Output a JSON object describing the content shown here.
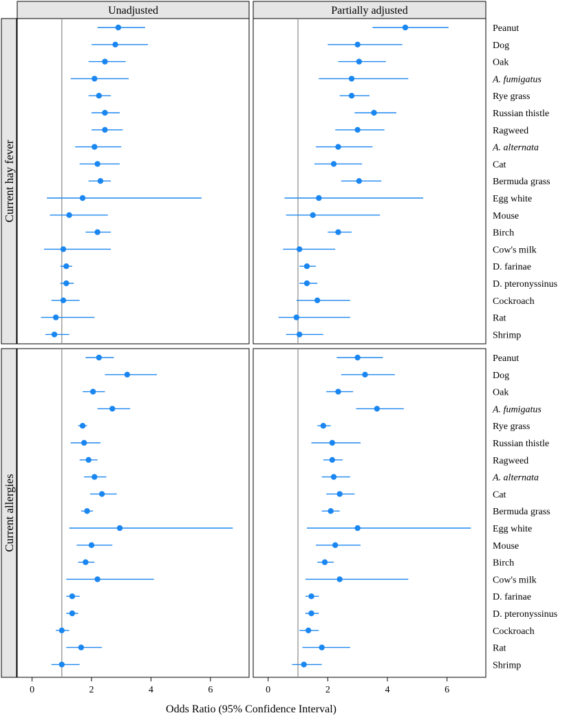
{
  "chart_data": {
    "type": "forest",
    "xlabel": "Odds Ratio (95% Confidence Interval)",
    "xlim": [
      -0.5,
      7.3
    ],
    "xticks": [
      0,
      2,
      4,
      6
    ],
    "reference_line": 1,
    "colors": {
      "points": "#1a86f0",
      "reference": "#888888",
      "strip": "#e6e6e6",
      "frame": "#000000"
    },
    "columns": [
      "Unadjusted",
      "Partially adjusted"
    ],
    "rows": [
      "Current hay fever",
      "Current allergies"
    ],
    "categories": [
      {
        "name": "Peanut",
        "italic": false
      },
      {
        "name": "Dog",
        "italic": false
      },
      {
        "name": "Oak",
        "italic": false
      },
      {
        "name": "A. fumigatus",
        "italic": true
      },
      {
        "name": "Rye grass",
        "italic": false
      },
      {
        "name": "Russian thistle",
        "italic": false
      },
      {
        "name": "Ragweed",
        "italic": false
      },
      {
        "name": "A. alternata",
        "italic": true
      },
      {
        "name": "Cat",
        "italic": false
      },
      {
        "name": "Bermuda grass",
        "italic": false
      },
      {
        "name": "Egg white",
        "italic": false
      },
      {
        "name": "Mouse",
        "italic": false
      },
      {
        "name": "Birch",
        "italic": false
      },
      {
        "name": "Cow's milk",
        "italic": false
      },
      {
        "name": "D. farinae",
        "italic": false
      },
      {
        "name": "D. pteronyssinus",
        "italic": false
      },
      {
        "name": "Cockroach",
        "italic": false
      },
      {
        "name": "Rat",
        "italic": false
      },
      {
        "name": "Shrimp",
        "italic": false
      }
    ],
    "panels": [
      {
        "row": "Current hay fever",
        "column": "Unadjusted",
        "estimates": [
          [
            2.9,
            2.2,
            3.8
          ],
          [
            2.8,
            2.0,
            3.9
          ],
          [
            2.45,
            1.9,
            3.15
          ],
          [
            2.1,
            1.3,
            3.25
          ],
          [
            2.25,
            1.9,
            2.65
          ],
          [
            2.45,
            2.0,
            2.95
          ],
          [
            2.45,
            2.0,
            3.05
          ],
          [
            2.1,
            1.45,
            3.0
          ],
          [
            2.2,
            1.6,
            2.95
          ],
          [
            2.3,
            1.9,
            2.65
          ],
          [
            1.7,
            0.5,
            5.7
          ],
          [
            1.25,
            0.6,
            2.55
          ],
          [
            2.2,
            1.8,
            2.65
          ],
          [
            1.05,
            0.4,
            2.65
          ],
          [
            1.15,
            0.95,
            1.35
          ],
          [
            1.15,
            0.95,
            1.4
          ],
          [
            1.05,
            0.65,
            1.6
          ],
          [
            0.8,
            0.3,
            2.1
          ],
          [
            0.75,
            0.45,
            1.25
          ]
        ]
      },
      {
        "row": "Current hay fever",
        "column": "Partially adjusted",
        "estimates": [
          [
            4.6,
            3.5,
            6.05
          ],
          [
            3.0,
            2.0,
            4.5
          ],
          [
            3.05,
            2.35,
            3.95
          ],
          [
            2.8,
            1.7,
            4.7
          ],
          [
            2.8,
            2.4,
            3.4
          ],
          [
            3.55,
            2.9,
            4.3
          ],
          [
            3.0,
            2.25,
            3.9
          ],
          [
            2.35,
            1.6,
            3.5
          ],
          [
            2.2,
            1.55,
            3.15
          ],
          [
            3.05,
            2.45,
            3.8
          ],
          [
            1.7,
            0.55,
            5.2
          ],
          [
            1.5,
            0.6,
            3.75
          ],
          [
            2.35,
            2.0,
            2.8
          ],
          [
            1.05,
            0.5,
            2.25
          ],
          [
            1.3,
            1.05,
            1.6
          ],
          [
            1.3,
            1.05,
            1.65
          ],
          [
            1.65,
            0.95,
            2.75
          ],
          [
            0.95,
            0.35,
            2.75
          ],
          [
            1.05,
            0.6,
            1.85
          ]
        ]
      },
      {
        "row": "Current allergies",
        "column": "Unadjusted",
        "estimates": [
          [
            2.25,
            1.8,
            2.75
          ],
          [
            3.2,
            2.45,
            4.2
          ],
          [
            2.05,
            1.7,
            2.45
          ],
          [
            2.7,
            2.2,
            3.3
          ],
          [
            1.7,
            1.55,
            1.85
          ],
          [
            1.75,
            1.3,
            2.3
          ],
          [
            1.9,
            1.6,
            2.2
          ],
          [
            2.1,
            1.75,
            2.5
          ],
          [
            2.35,
            1.95,
            2.85
          ],
          [
            1.85,
            1.65,
            2.05
          ],
          [
            2.95,
            1.25,
            6.75
          ],
          [
            2.0,
            1.5,
            2.7
          ],
          [
            1.8,
            1.55,
            2.1
          ],
          [
            2.2,
            1.15,
            4.1
          ],
          [
            1.35,
            1.15,
            1.6
          ],
          [
            1.35,
            1.15,
            1.55
          ],
          [
            1.0,
            0.8,
            1.25
          ],
          [
            1.65,
            1.15,
            2.35
          ],
          [
            1.0,
            0.65,
            1.6
          ]
        ]
      },
      {
        "row": "Current allergies",
        "column": "Partially adjusted",
        "estimates": [
          [
            3.0,
            2.3,
            3.85
          ],
          [
            3.25,
            2.45,
            4.25
          ],
          [
            2.35,
            1.95,
            2.85
          ],
          [
            3.65,
            2.95,
            4.55
          ],
          [
            1.85,
            1.65,
            2.1
          ],
          [
            2.15,
            1.45,
            3.1
          ],
          [
            2.15,
            1.85,
            2.5
          ],
          [
            2.2,
            1.8,
            2.75
          ],
          [
            2.4,
            1.95,
            2.9
          ],
          [
            2.1,
            1.8,
            2.4
          ],
          [
            3.0,
            1.3,
            6.8
          ],
          [
            2.25,
            1.6,
            3.1
          ],
          [
            1.9,
            1.65,
            2.2
          ],
          [
            2.4,
            1.25,
            4.7
          ],
          [
            1.45,
            1.25,
            1.7
          ],
          [
            1.45,
            1.25,
            1.7
          ],
          [
            1.35,
            1.05,
            1.7
          ],
          [
            1.8,
            1.15,
            2.75
          ],
          [
            1.2,
            0.8,
            1.8
          ]
        ]
      }
    ]
  }
}
